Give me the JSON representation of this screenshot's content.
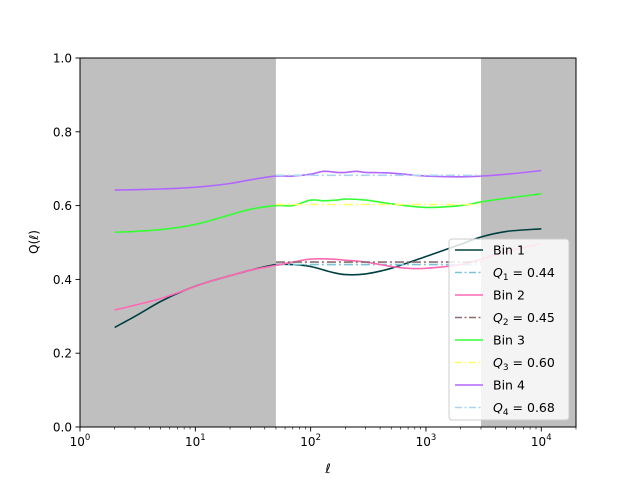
{
  "chart_data": {
    "type": "line",
    "xlabel": "ℓ",
    "ylabel": "Q(ℓ)",
    "xscale": "log",
    "xlim": [
      1,
      20000
    ],
    "ylim": [
      0.0,
      1.0
    ],
    "grid": false,
    "legend_position": "lower-right",
    "x_ticks": [
      {
        "value": 1,
        "base": "10",
        "exp": "0"
      },
      {
        "value": 10,
        "base": "10",
        "exp": "1"
      },
      {
        "value": 100,
        "base": "10",
        "exp": "2"
      },
      {
        "value": 1000,
        "base": "10",
        "exp": "3"
      },
      {
        "value": 10000,
        "base": "10",
        "exp": "4"
      }
    ],
    "y_ticks": [
      "0.0",
      "0.2",
      "0.4",
      "0.6",
      "0.8",
      "1.0"
    ],
    "shaded_regions": [
      {
        "x_range": [
          1,
          50
        ],
        "color": "#bfbfbf"
      },
      {
        "x_range": [
          3000,
          20000
        ],
        "color": "#bfbfbf"
      }
    ],
    "series": [
      {
        "name": "Bin 1",
        "color": "#004040",
        "style": "solid",
        "x": [
          2,
          3,
          5,
          8,
          12,
          20,
          30,
          50,
          70,
          100,
          150,
          200,
          300,
          500,
          1000,
          2000,
          3000,
          5000,
          10000
        ],
        "y": [
          0.27,
          0.3,
          0.34,
          0.37,
          0.39,
          0.41,
          0.425,
          0.44,
          0.44,
          0.435,
          0.42,
          0.413,
          0.415,
          0.43,
          0.462,
          0.495,
          0.515,
          0.53,
          0.537
        ]
      },
      {
        "name": "Q_1 = 0.44",
        "label_main": "Q",
        "label_sub": "1",
        "label_rest": " = 0.44",
        "color": "#7bc4d8",
        "style": "dashdot",
        "x": [
          50,
          3000
        ],
        "y": [
          0.44,
          0.44
        ]
      },
      {
        "name": "Bin 2",
        "color": "#ff69b4",
        "style": "solid",
        "x": [
          2,
          3,
          5,
          8,
          12,
          20,
          30,
          50,
          70,
          100,
          150,
          200,
          300,
          500,
          700,
          1000,
          2000,
          3000,
          5000,
          10000
        ],
        "y": [
          0.317,
          0.33,
          0.348,
          0.37,
          0.39,
          0.41,
          0.425,
          0.438,
          0.447,
          0.455,
          0.455,
          0.452,
          0.447,
          0.435,
          0.43,
          0.43,
          0.44,
          0.455,
          0.475,
          0.497
        ]
      },
      {
        "name": "Q_2 = 0.45",
        "label_main": "Q",
        "label_sub": "2",
        "label_rest": " = 0.45",
        "color": "#8c6d6d",
        "style": "dashdot",
        "x": [
          50,
          3000
        ],
        "y": [
          0.447,
          0.447
        ]
      },
      {
        "name": "Bin 3",
        "color": "#33ff33",
        "style": "solid",
        "x": [
          2,
          3,
          5,
          8,
          12,
          20,
          30,
          50,
          70,
          100,
          130,
          170,
          200,
          300,
          500,
          1000,
          2000,
          3000,
          5000,
          10000
        ],
        "y": [
          0.528,
          0.53,
          0.535,
          0.543,
          0.555,
          0.575,
          0.59,
          0.6,
          0.6,
          0.615,
          0.613,
          0.615,
          0.618,
          0.615,
          0.605,
          0.595,
          0.6,
          0.61,
          0.62,
          0.632
        ]
      },
      {
        "name": "Q_3 = 0.60",
        "label_main": "Q",
        "label_sub": "3",
        "label_rest": " = 0.60",
        "color": "#ffff66",
        "style": "dashdot",
        "x": [
          50,
          3000
        ],
        "y": [
          0.603,
          0.603
        ]
      },
      {
        "name": "Bin 4",
        "color": "#b266ff",
        "style": "solid",
        "x": [
          2,
          3,
          5,
          8,
          12,
          20,
          30,
          50,
          70,
          100,
          130,
          170,
          200,
          250,
          300,
          500,
          1000,
          2000,
          3000,
          5000,
          10000
        ],
        "y": [
          0.642,
          0.643,
          0.645,
          0.648,
          0.652,
          0.66,
          0.67,
          0.68,
          0.68,
          0.685,
          0.693,
          0.69,
          0.69,
          0.693,
          0.69,
          0.688,
          0.68,
          0.678,
          0.68,
          0.685,
          0.695
        ]
      },
      {
        "name": "Q_4 = 0.68",
        "label_main": "Q",
        "label_sub": "4",
        "label_rest": " = 0.68",
        "color": "#aad4f0",
        "style": "dashdot",
        "x": [
          50,
          3000
        ],
        "y": [
          0.682,
          0.682
        ]
      }
    ]
  }
}
